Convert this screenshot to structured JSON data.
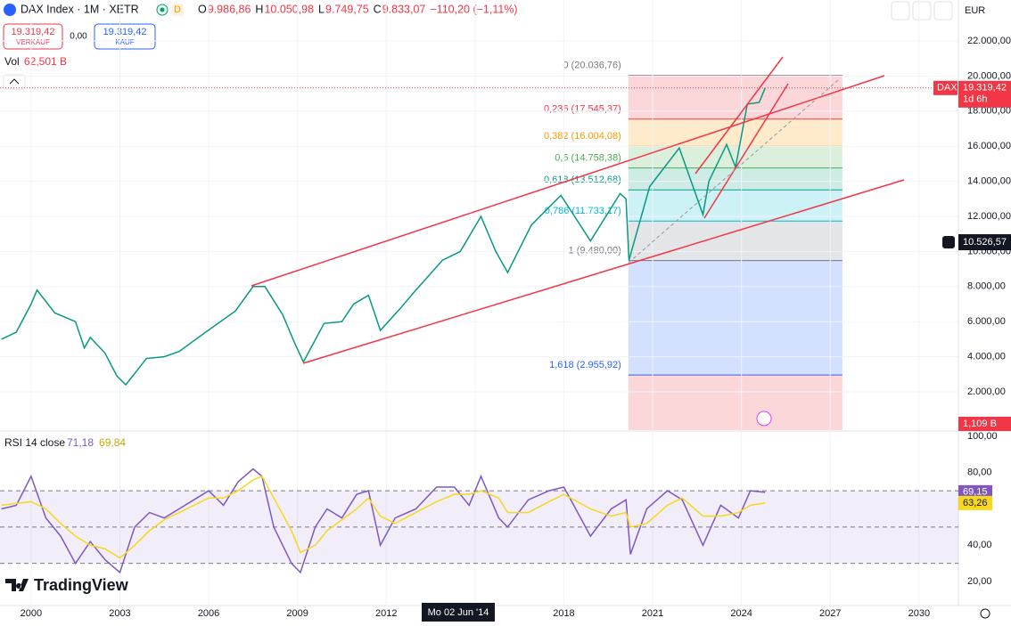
{
  "header": {
    "symbol": "DAX Index · 1M · XETR",
    "badge": "D",
    "ohlc": [
      {
        "key": "O",
        "value": "9.986,86"
      },
      {
        "key": "H",
        "value": "10.050,98"
      },
      {
        "key": "L",
        "value": "9.749,75"
      },
      {
        "key": "C",
        "value": "9.833,07"
      }
    ],
    "change": "−110,20 (−1,11%)",
    "currency": "EUR"
  },
  "trade": {
    "sell_price": "19.319,42",
    "sell_label": "VERKAUF",
    "spread": "0,00",
    "buy_price": "19.319,42",
    "buy_label": "KAUF"
  },
  "volume_legend": {
    "label": "Vol",
    "value": "62,501 B",
    "scale_label": "1,109 B"
  },
  "brand": "TradingView",
  "chart_data": [
    {
      "type": "line",
      "color": "#089981",
      "x": [
        1999,
        1999.5,
        2000,
        2000.2,
        2000.8,
        2001.5,
        2001.8,
        2002,
        2002.5,
        2002.9,
        2003.2,
        2003.9,
        2004.5,
        2005,
        2005.9,
        2006.9,
        2007.5,
        2007.9,
        2008.5,
        2008.9,
        2009.2,
        2009.9,
        2010.5,
        2010.9,
        2011.4,
        2011.8,
        2012.5,
        2012.9,
        2013.9,
        2014.5,
        2015.2,
        2015.7,
        2016.1,
        2016.9,
        2017.9,
        2018.9,
        2019.9,
        2020.1,
        2020.2,
        2020.9,
        2021.9,
        2022.7,
        2022.9,
        2023.5,
        2023.8,
        2024.2,
        2024.6,
        2024.8
      ],
      "values": [
        5000,
        5400,
        7000,
        7800,
        6500,
        6000,
        4500,
        5100,
        4200,
        2900,
        2400,
        3900,
        4000,
        4300,
        5400,
        6600,
        8000,
        8000,
        6400,
        4800,
        3700,
        5900,
        6000,
        7000,
        7500,
        5500,
        6800,
        7600,
        9500,
        10000,
        12000,
        10000,
        8800,
        11500,
        13200,
        10600,
        13300,
        13000,
        9500,
        13700,
        15900,
        12100,
        14000,
        16100,
        14800,
        18400,
        18500,
        19319.42
      ],
      "xlim": [
        1998.95,
        2031.33
      ],
      "ylim": [
        -183,
        24335
      ],
      "xticks": [
        2000,
        2003,
        2006,
        2009,
        2012,
        2015,
        2018,
        2021,
        2024,
        2027,
        2030
      ],
      "yticks": [
        {
          "value": 2000,
          "label": "2.000,00"
        },
        {
          "value": 4000,
          "label": "4.000,00"
        },
        {
          "value": 6000,
          "label": "6.000,00"
        },
        {
          "value": 8000,
          "label": "8.000,00"
        },
        {
          "value": 10000,
          "label": "10.000,00"
        },
        {
          "value": 12000,
          "label": "12.000,00"
        },
        {
          "value": 14000,
          "label": "14.000,00"
        },
        {
          "value": 16000,
          "label": "16.000,00"
        },
        {
          "value": 18000,
          "label": "18.000,00"
        },
        {
          "value": 20000,
          "label": "20.000,00"
        },
        {
          "value": 22000,
          "label": "22.000,00"
        }
      ],
      "fib_range": [
        2020.18,
        2027.41
      ],
      "fib_extension_color": "#f23645",
      "fib_levels": [
        {
          "value": 20036.76,
          "label": "0 (20.036,76)",
          "color": "#787b86"
        },
        {
          "value": 17545.37,
          "label": "0,236 (17.545,37)",
          "color": "#f23645"
        },
        {
          "value": 16004.08,
          "label": "0,382 (16.004,08)",
          "color": "#ff9800"
        },
        {
          "value": 14758.38,
          "label": "0,5 (14.758,38)",
          "color": "#4caf50"
        },
        {
          "value": 13512.68,
          "label": "0,618 (13.512,68)",
          "color": "#089981"
        },
        {
          "value": 11733.17,
          "label": "0,786 (11.733,17)",
          "color": "#00bcd4"
        },
        {
          "value": 9480,
          "label": "1 (9.480,00)",
          "color": "#787b86"
        },
        {
          "value": 2955.92,
          "label": "1,618 (2.955,92)",
          "color": "#2962ff"
        }
      ],
      "last_price": {
        "value": 19319.42,
        "label": "19.319,42",
        "symbol": "DAX",
        "countdown": "1d 6h"
      },
      "crosshair": {
        "value": 10526.57,
        "label": "10.526,57",
        "date": "Mo 02 Jun '14"
      }
    },
    {
      "type": "line",
      "legend_title": "RSI 14 close",
      "x": [
        1999,
        1999.5,
        2000,
        2000.5,
        2001,
        2001.5,
        2002,
        2002.5,
        2003,
        2003.5,
        2004,
        2004.5,
        2005,
        2005.5,
        2006,
        2006.5,
        2007,
        2007.5,
        2007.8,
        2008.2,
        2008.8,
        2009.1,
        2009.6,
        2010,
        2010.5,
        2011,
        2011.4,
        2011.8,
        2012.3,
        2013,
        2013.7,
        2014.3,
        2014.8,
        2015.2,
        2015.8,
        2016.1,
        2016.8,
        2017.5,
        2018,
        2018.9,
        2019.6,
        2020.1,
        2020.25,
        2020.8,
        2021.5,
        2022,
        2022.7,
        2023.3,
        2023.9,
        2024.3,
        2024.8
      ],
      "series": [
        {
          "color": "#7e57c2",
          "values": [
            60,
            62,
            78,
            55,
            45,
            30,
            42,
            32,
            25,
            50,
            58,
            55,
            60,
            65,
            70,
            62,
            75,
            82,
            78,
            50,
            30,
            25,
            50,
            60,
            55,
            68,
            70,
            40,
            55,
            60,
            72,
            72,
            62,
            78,
            55,
            50,
            65,
            70,
            72,
            45,
            60,
            65,
            35,
            60,
            70,
            65,
            40,
            62,
            55,
            70,
            69.15
          ],
          "legend": {
            "value": 71.18,
            "label": "71,18"
          },
          "last": {
            "value": 69.15,
            "label": "69,15"
          }
        },
        {
          "color": "#f7d81c",
          "values": [
            62,
            63,
            64,
            60,
            52,
            45,
            40,
            38,
            33,
            40,
            48,
            54,
            58,
            62,
            66,
            66,
            70,
            76,
            78,
            66,
            48,
            36,
            40,
            48,
            54,
            60,
            66,
            56,
            52,
            58,
            64,
            68,
            68,
            70,
            66,
            58,
            58,
            64,
            68,
            60,
            56,
            58,
            50,
            52,
            62,
            66,
            56,
            56,
            58,
            62,
            63.26
          ],
          "legend": {
            "value": 69.84,
            "label": "69,84"
          },
          "last": {
            "value": 63.26,
            "label": "63,26"
          }
        }
      ],
      "xlim": [
        1998.95,
        2031.33
      ],
      "ylim": [
        6.8,
        102.9
      ],
      "yticks": [
        {
          "value": 20,
          "label": "20,00"
        },
        {
          "value": 40,
          "label": "40,00"
        },
        {
          "value": 80,
          "label": "80,00"
        },
        {
          "value": 100,
          "label": "100,00"
        }
      ],
      "levels": [
        70,
        50,
        30
      ],
      "band": [
        30,
        70
      ],
      "band_color": "#7e57c2"
    }
  ]
}
